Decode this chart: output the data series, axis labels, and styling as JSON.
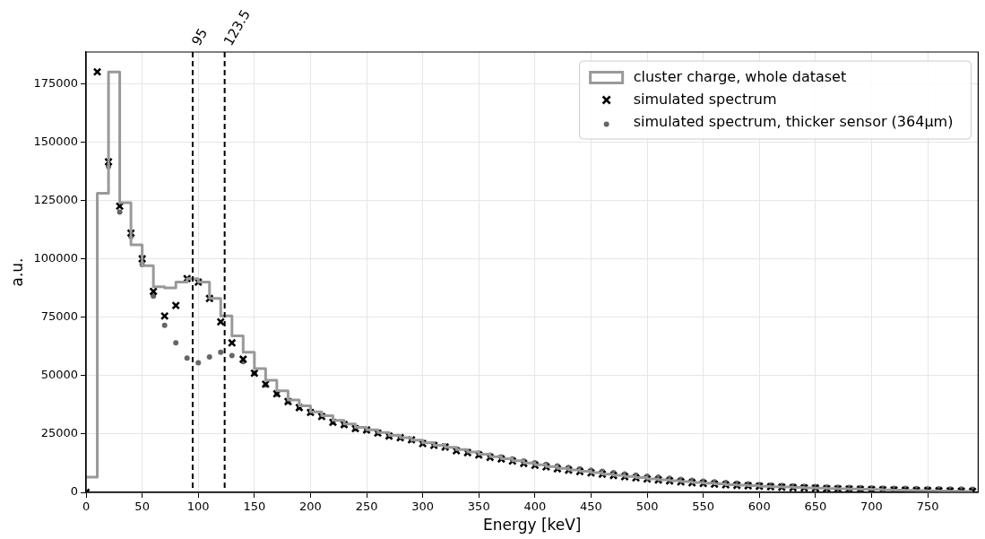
{
  "chart_data": {
    "type": "histogram",
    "xlabel": "Energy [keV]",
    "ylabel": "a.u.",
    "xlim": [
      0,
      795
    ],
    "xticks": [
      0,
      50,
      100,
      150,
      200,
      250,
      300,
      350,
      400,
      450,
      500,
      550,
      600,
      650,
      700,
      750
    ],
    "ylim": [
      0,
      188500
    ],
    "yticks": [
      0,
      25000,
      50000,
      75000,
      100000,
      125000,
      150000,
      175000
    ],
    "grid": true,
    "legend": "top right",
    "x": [
      0,
      10,
      20,
      30,
      40,
      50,
      60,
      70,
      80,
      90,
      100,
      110,
      120,
      130,
      140,
      150,
      160,
      170,
      180,
      190,
      200,
      210,
      220,
      230,
      240,
      250,
      260,
      270,
      280,
      290,
      300,
      310,
      320,
      330,
      340,
      350,
      360,
      370,
      380,
      390,
      400,
      410,
      420,
      430,
      440,
      450,
      460,
      470,
      480,
      490,
      500,
      510,
      520,
      530,
      540,
      550,
      560,
      570,
      580,
      590,
      600,
      610,
      620,
      630,
      640,
      650,
      660,
      670,
      680,
      690,
      700,
      710,
      720,
      730,
      740,
      750,
      760,
      770,
      780,
      790
    ],
    "series": [
      {
        "type": "histogram",
        "name": "cluster charge, whole dataset",
        "color": "#999999",
        "bins": [
          0,
          10,
          20,
          30,
          40,
          50,
          60,
          70,
          80,
          90,
          100,
          110,
          120,
          130,
          140,
          150,
          160,
          170,
          180,
          190,
          200,
          210,
          220,
          230,
          240,
          250,
          260,
          270,
          280,
          290,
          300,
          310,
          320,
          330,
          340,
          350,
          360,
          370,
          380,
          390,
          400,
          410,
          420,
          430,
          440,
          450,
          460,
          470,
          480,
          490,
          500,
          510,
          520,
          530,
          540,
          550,
          560,
          570,
          580,
          590,
          600,
          610,
          620,
          630,
          640,
          650,
          660,
          670,
          680,
          690,
          700,
          710,
          720,
          730,
          740,
          750,
          760,
          770,
          780,
          790
        ],
        "values": [
          6500,
          128000,
          180000,
          124000,
          106000,
          97000,
          88000,
          87500,
          90000,
          91500,
          90000,
          83000,
          75500,
          67000,
          60000,
          53000,
          48000,
          43500,
          39500,
          37000,
          34500,
          32800,
          30800,
          29300,
          27800,
          26800,
          25600,
          24400,
          23400,
          22400,
          21200,
          20200,
          19300,
          18300,
          17300,
          16300,
          15300,
          14400,
          13500,
          12600,
          11800,
          11000,
          10300,
          9600,
          9000,
          8400,
          7800,
          7300,
          6800,
          6300,
          5800,
          5400,
          5000,
          4600,
          4200,
          3900,
          3600,
          3300,
          3100,
          2900,
          2600,
          2400,
          2300,
          2100,
          1900,
          1800,
          1600,
          1500,
          1400,
          1300,
          1200,
          1100,
          1000,
          900,
          800,
          700,
          600,
          500,
          400
        ]
      },
      {
        "type": "scatter",
        "name": "simulated spectrum",
        "color": "#000000",
        "marker": "cross",
        "values": [
          0,
          180000,
          141500,
          122500,
          111000,
          100000,
          86000,
          75500,
          80000,
          91500,
          90000,
          83000,
          73000,
          64000,
          57000,
          51000,
          46300,
          42200,
          38900,
          36300,
          34200,
          32500,
          30000,
          29000,
          27300,
          26700,
          25400,
          24100,
          23400,
          22500,
          20900,
          20100,
          19400,
          17800,
          17000,
          16000,
          15000,
          14300,
          13400,
          12400,
          11600,
          10900,
          10100,
          9500,
          8900,
          8300,
          7800,
          7200,
          6700,
          6200,
          5700,
          5300,
          4900,
          4500,
          4100,
          3800,
          3500,
          3200,
          3000,
          2800,
          2600,
          2400,
          2200,
          2000,
          1900,
          1800,
          1600,
          1500,
          1400,
          1300,
          1200,
          1100,
          1000,
          900,
          800,
          800,
          700,
          600,
          500,
          400
        ]
      },
      {
        "type": "scatter",
        "name": "simulated spectrum, thicker sensor (364μm)",
        "color": "#666666",
        "marker": "circle",
        "values": [
          null,
          null,
          139500,
          120000,
          109500,
          97500,
          84000,
          71500,
          64000,
          57500,
          55500,
          58000,
          60000,
          58500,
          56000,
          51000,
          46000,
          42000,
          38900,
          36300,
          34200,
          32500,
          30000,
          29000,
          27300,
          26700,
          25400,
          24100,
          23400,
          22500,
          21300,
          20600,
          19900,
          18500,
          17700,
          16800,
          15900,
          15200,
          14300,
          13400,
          12700,
          12000,
          11300,
          10700,
          10100,
          9500,
          9000,
          8400,
          7900,
          7400,
          6900,
          6500,
          6000,
          5600,
          5200,
          4800,
          4500,
          4200,
          3900,
          3600,
          3400,
          3200,
          3000,
          2800,
          2600,
          2500,
          2300,
          2200,
          2100,
          2000,
          1900,
          1800,
          1700,
          1700,
          1600,
          1500,
          1500,
          1400,
          1400,
          1300
        ]
      }
    ],
    "ref_lines": [
      {
        "axis": "x",
        "value": 95,
        "label": "95",
        "color": "#000000",
        "line_style": "dashed"
      },
      {
        "axis": "x",
        "value": 123.5,
        "label": "123.5",
        "color": "#000000",
        "line_style": "dashed"
      }
    ]
  }
}
